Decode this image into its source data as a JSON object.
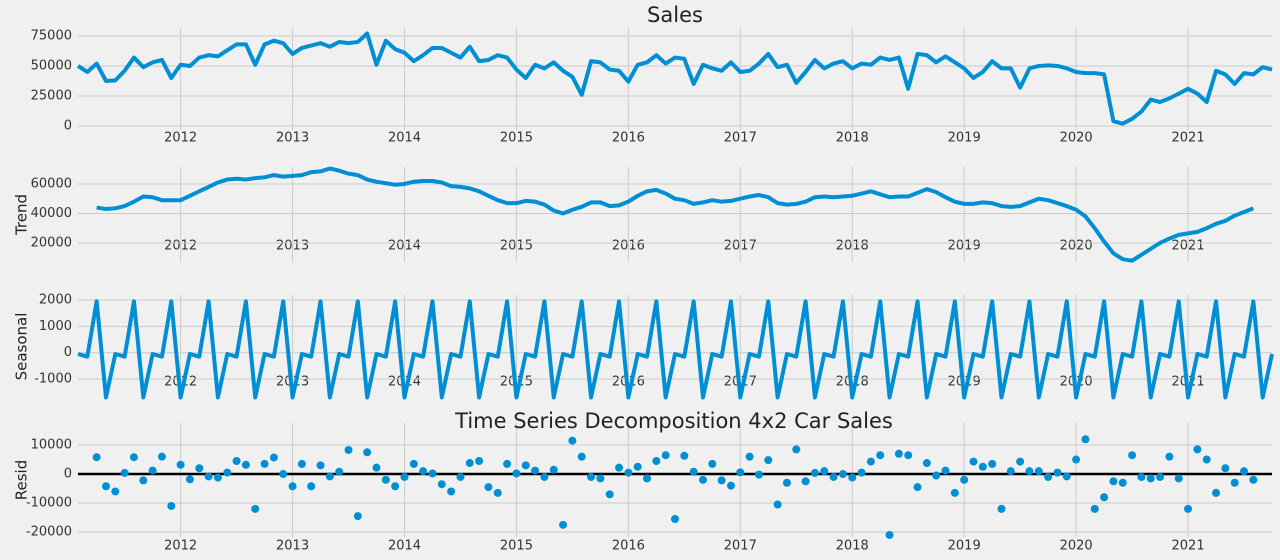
{
  "figure_title": "Time Series Decomposition 4x2 Car Sales",
  "chart_data": [
    {
      "type": "line",
      "title": "Sales",
      "color": "#008fd5",
      "grid": true,
      "x": [
        "2011-02",
        "2011-03",
        "2011-04",
        "2011-05",
        "2011-06",
        "2011-07",
        "2011-08",
        "2011-09",
        "2011-10",
        "2011-11",
        "2011-12",
        "2012-01",
        "2012-02",
        "2012-03",
        "2012-04",
        "2012-05",
        "2012-06",
        "2012-07",
        "2012-08",
        "2012-09",
        "2012-10",
        "2012-11",
        "2012-12",
        "2013-01",
        "2013-02",
        "2013-03",
        "2013-04",
        "2013-05",
        "2013-06",
        "2013-07",
        "2013-08",
        "2013-09",
        "2013-10",
        "2013-11",
        "2013-12",
        "2014-01",
        "2014-02",
        "2014-03",
        "2014-04",
        "2014-05",
        "2014-06",
        "2014-07",
        "2014-08",
        "2014-09",
        "2014-10",
        "2014-11",
        "2014-12",
        "2015-01",
        "2015-02",
        "2015-03",
        "2015-04",
        "2015-05",
        "2015-06",
        "2015-07",
        "2015-08",
        "2015-09",
        "2015-10",
        "2015-11",
        "2015-12",
        "2016-01",
        "2016-02",
        "2016-03",
        "2016-04",
        "2016-05",
        "2016-06",
        "2016-07",
        "2016-08",
        "2016-09",
        "2016-10",
        "2016-11",
        "2016-12",
        "2017-01",
        "2017-02",
        "2017-03",
        "2017-04",
        "2017-05",
        "2017-06",
        "2017-07",
        "2017-08",
        "2017-09",
        "2017-10",
        "2017-11",
        "2017-12",
        "2018-01",
        "2018-02",
        "2018-03",
        "2018-04",
        "2018-05",
        "2018-06",
        "2018-07",
        "2018-08",
        "2018-09",
        "2018-10",
        "2018-11",
        "2018-12",
        "2019-01",
        "2019-02",
        "2019-03",
        "2019-04",
        "2019-05",
        "2019-06",
        "2019-07",
        "2019-08",
        "2019-09",
        "2019-10",
        "2019-11",
        "2019-12",
        "2020-01",
        "2020-02",
        "2020-03",
        "2020-04",
        "2020-05",
        "2020-06",
        "2020-07",
        "2020-08",
        "2020-09",
        "2020-10",
        "2020-11",
        "2020-12",
        "2021-01",
        "2021-02",
        "2021-03",
        "2021-04",
        "2021-05",
        "2021-06",
        "2021-07",
        "2021-08",
        "2021-09",
        "2021-10"
      ],
      "xlim": [
        "2011-02",
        "2021-10"
      ],
      "xticks": [
        {
          "value": "2012-01",
          "label": "2012"
        },
        {
          "value": "2013-01",
          "label": "2013"
        },
        {
          "value": "2014-01",
          "label": "2014"
        },
        {
          "value": "2015-01",
          "label": "2015"
        },
        {
          "value": "2016-01",
          "label": "2016"
        },
        {
          "value": "2017-01",
          "label": "2017"
        },
        {
          "value": "2018-01",
          "label": "2018"
        },
        {
          "value": "2019-01",
          "label": "2019"
        },
        {
          "value": "2020-01",
          "label": "2020"
        },
        {
          "value": "2021-01",
          "label": "2021"
        }
      ],
      "ylim": [
        -3300,
        81600
      ],
      "yticks": [
        0,
        25000,
        50000,
        75000
      ],
      "values": [
        50000,
        45000,
        52000,
        37500,
        38000,
        46000,
        57000,
        49000,
        53000,
        55000,
        40000,
        51000,
        50000,
        57000,
        59000,
        58000,
        63000,
        68000,
        68000,
        51000,
        68000,
        71000,
        69000,
        60000,
        65000,
        67000,
        69000,
        66000,
        70000,
        69000,
        70000,
        77000,
        51000,
        71000,
        64000,
        61000,
        54000,
        59000,
        65000,
        65000,
        61000,
        57000,
        66000,
        54000,
        55000,
        59000,
        57000,
        47000,
        40000,
        51000,
        48000,
        53000,
        46000,
        41000,
        26000,
        54000,
        53000,
        47000,
        46000,
        37000,
        51000,
        53000,
        59000,
        52000,
        57000,
        56000,
        35000,
        51000,
        48000,
        46000,
        53000,
        45000,
        46000,
        52000,
        60000,
        49000,
        51000,
        36000,
        45000,
        55000,
        48000,
        52000,
        54000,
        48000,
        52000,
        51000,
        57000,
        55000,
        57000,
        31000,
        60000,
        59000,
        53000,
        58000,
        53000,
        48000,
        40000,
        45000,
        54000,
        48000,
        48000,
        32000,
        48000,
        50000,
        50500,
        50000,
        48000,
        45000,
        44000,
        44000,
        43000,
        4000,
        2000,
        6000,
        12000,
        22000,
        20000,
        23000,
        27000,
        31000,
        27000,
        20000,
        46000,
        43000,
        35000,
        44000,
        43000,
        49000,
        47000
      ]
    },
    {
      "type": "line",
      "ylabel": "Trend",
      "color": "#008fd5",
      "grid": true,
      "xticks": [
        {
          "value": "2012-01",
          "label": "2012"
        },
        {
          "value": "2013-01",
          "label": "2013"
        },
        {
          "value": "2014-01",
          "label": "2014"
        },
        {
          "value": "2015-01",
          "label": "2015"
        },
        {
          "value": "2016-01",
          "label": "2016"
        },
        {
          "value": "2017-01",
          "label": "2017"
        },
        {
          "value": "2018-01",
          "label": "2018"
        },
        {
          "value": "2019-01",
          "label": "2019"
        },
        {
          "value": "2020-01",
          "label": "2020"
        },
        {
          "value": "2021-01",
          "label": "2021"
        }
      ],
      "ylim": [
        7100,
        71500
      ],
      "yticks": [
        20000,
        40000,
        60000
      ],
      "values": [
        null,
        null,
        44000,
        43000,
        43500,
        45000,
        48000,
        51500,
        51000,
        49000,
        49000,
        49000,
        52000,
        55000,
        58000,
        61000,
        63000,
        63500,
        63000,
        64000,
        64500,
        66000,
        65000,
        65500,
        66000,
        68000,
        68500,
        70500,
        69000,
        67000,
        66000,
        63000,
        61500,
        60500,
        59500,
        60000,
        61500,
        62000,
        62000,
        61000,
        58500,
        58000,
        57000,
        55000,
        52000,
        49000,
        47000,
        47000,
        48500,
        48000,
        46000,
        42000,
        40000,
        42500,
        44500,
        47500,
        47500,
        45000,
        45500,
        48000,
        52000,
        55000,
        56000,
        53500,
        50000,
        49000,
        46500,
        47500,
        49000,
        48000,
        48500,
        50000,
        51500,
        52500,
        51000,
        47000,
        46000,
        46500,
        48000,
        51000,
        51500,
        51000,
        51500,
        52000,
        53500,
        55000,
        53000,
        51000,
        51500,
        51500,
        54000,
        56500,
        54500,
        51000,
        48000,
        46500,
        46500,
        47500,
        47000,
        45000,
        44500,
        45000,
        47500,
        50000,
        49000,
        47000,
        45000,
        42500,
        38000,
        30000,
        21000,
        13000,
        9000,
        8000,
        12000,
        16000,
        20000,
        23000,
        25500,
        26500,
        27500,
        30000,
        33000,
        35000,
        38500,
        41000,
        43500,
        null,
        null
      ]
    },
    {
      "type": "line",
      "ylabel": "Seasonal",
      "color": "#008fd5",
      "grid": true,
      "xticks": [
        {
          "value": "2012-01",
          "label": "2012"
        },
        {
          "value": "2013-01",
          "label": "2013"
        },
        {
          "value": "2014-01",
          "label": "2014"
        },
        {
          "value": "2015-01",
          "label": "2015"
        },
        {
          "value": "2016-01",
          "label": "2016"
        },
        {
          "value": "2017-01",
          "label": "2017"
        },
        {
          "value": "2018-01",
          "label": "2018"
        },
        {
          "value": "2019-01",
          "label": "2019"
        },
        {
          "value": "2020-01",
          "label": "2020"
        },
        {
          "value": "2021-01",
          "label": "2021"
        }
      ],
      "ylim": [
        -1720,
        2190
      ],
      "yticks": [
        -1000,
        0,
        1000,
        2000
      ],
      "values": [
        -50,
        -150,
        1950,
        -1700,
        -50,
        -150,
        1950,
        -1700,
        -50,
        -150,
        1950,
        -1700,
        -50,
        -150,
        1950,
        -1700,
        -50,
        -150,
        1950,
        -1700,
        -50,
        -150,
        1950,
        -1700,
        -50,
        -150,
        1950,
        -1700,
        -50,
        -150,
        1950,
        -1700,
        -50,
        -150,
        1950,
        -1700,
        -50,
        -150,
        1950,
        -1700,
        -50,
        -150,
        1950,
        -1700,
        -50,
        -150,
        1950,
        -1700,
        -50,
        -150,
        1950,
        -1700,
        -50,
        -150,
        1950,
        -1700,
        -50,
        -150,
        1950,
        -1700,
        -50,
        -150,
        1950,
        -1700,
        -50,
        -150,
        1950,
        -1700,
        -50,
        -150,
        1950,
        -1700,
        -50,
        -150,
        1950,
        -1700,
        -50,
        -150,
        1950,
        -1700,
        -50,
        -150,
        1950,
        -1700,
        -50,
        -150,
        1950,
        -1700,
        -50,
        -150,
        1950,
        -1700,
        -50,
        -150,
        1950,
        -1700,
        -50,
        -150,
        1950,
        -1700,
        -50,
        -150,
        1950,
        -1700,
        -50,
        -150,
        1950,
        -1700,
        -50,
        -150,
        1950,
        -1700,
        -50,
        -150,
        1950,
        -1700,
        -50,
        -150,
        1950,
        -1700,
        -50,
        -150,
        1950,
        -1700,
        -50,
        -150,
        1950,
        -1700,
        -50
      ]
    },
    {
      "type": "scatter",
      "ylabel": "Resid",
      "color": "#008fd5",
      "grid": true,
      "hline": 0,
      "xticks": [
        {
          "value": "2012-01",
          "label": "2012"
        },
        {
          "value": "2013-01",
          "label": "2013"
        },
        {
          "value": "2014-01",
          "label": "2014"
        },
        {
          "value": "2015-01",
          "label": "2015"
        },
        {
          "value": "2016-01",
          "label": "2016"
        },
        {
          "value": "2017-01",
          "label": "2017"
        },
        {
          "value": "2018-01",
          "label": "2018"
        },
        {
          "value": "2019-01",
          "label": "2019"
        },
        {
          "value": "2020-01",
          "label": "2020"
        },
        {
          "value": "2021-01",
          "label": "2021"
        }
      ],
      "ylim": [
        -21700,
        17600
      ],
      "yticks": [
        -20000,
        -10000,
        0,
        10000
      ],
      "values": [
        null,
        null,
        5800,
        -4200,
        -6000,
        400,
        5800,
        -2200,
        1200,
        6000,
        -11000,
        3200,
        -1800,
        2000,
        -800,
        -1200,
        500,
        4500,
        3200,
        -12000,
        3500,
        5700,
        0,
        -4200,
        3500,
        -4200,
        3000,
        -800,
        800,
        8300,
        -14500,
        7500,
        2200,
        -2000,
        -4200,
        -1000,
        3500,
        1000,
        200,
        -3500,
        -6000,
        -1000,
        3800,
        4500,
        -4500,
        -6500,
        3500,
        200,
        3000,
        1200,
        -1000,
        1500,
        -17500,
        11500,
        6000,
        -1000,
        -1500,
        -7000,
        2200,
        500,
        2500,
        -1500,
        4500,
        6500,
        -15500,
        6300,
        800,
        -2000,
        3500,
        -2200,
        -4000,
        600,
        6000,
        -200,
        4800,
        -10500,
        -3000,
        8500,
        -2500,
        400,
        1000,
        -1000,
        0,
        -1200,
        500,
        4300,
        6500,
        -21000,
        7000,
        6500,
        -4500,
        3800,
        -500,
        1200,
        -6500,
        -2000,
        4300,
        2500,
        3500,
        -12000,
        1000,
        4300,
        1000,
        1000,
        -1000,
        500,
        -800,
        5000,
        12000,
        -12000,
        -8000,
        -2500,
        -3000,
        6500,
        -1000,
        -1500,
        -1000,
        6000,
        -1500,
        -12000,
        8500,
        5000,
        -6500,
        2000,
        -3000,
        1000,
        -2000,
        null,
        null
      ]
    }
  ]
}
